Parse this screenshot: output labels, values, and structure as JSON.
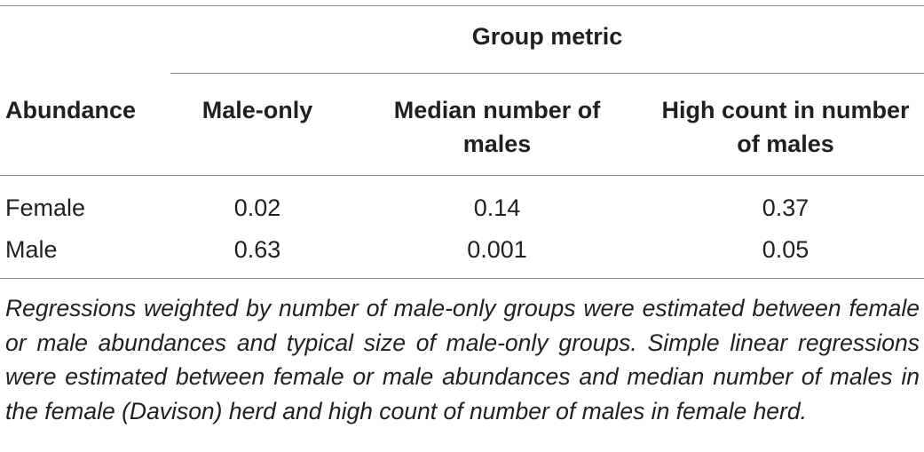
{
  "table": {
    "group_header": "Group metric",
    "columns": [
      "Abundance",
      "Male-only",
      [
        "Median number of",
        "males"
      ],
      [
        "High count in number",
        "of males"
      ]
    ],
    "rows": [
      [
        "Female",
        "0.02",
        "0.14",
        "0.37"
      ],
      [
        "Male",
        "0.63",
        "0.001",
        "0.05"
      ]
    ],
    "footnote": "Regressions weighted by number of male-only groups were estimated between female or male abundances and typical size of male-only groups. Simple linear regressions were estimated between female or male abundances and median number of males in the female (Davison) herd and high count of number of males in female herd."
  }
}
